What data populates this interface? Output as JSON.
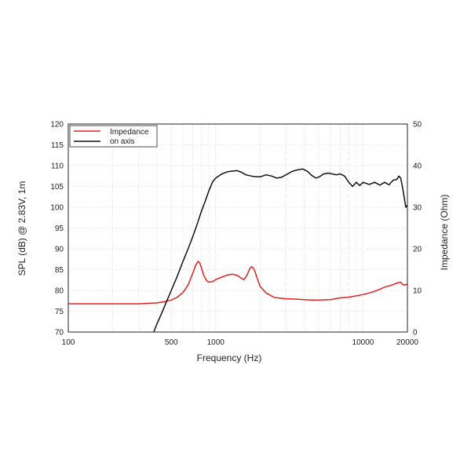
{
  "chart_data": {
    "type": "line",
    "xlabel": "Frequency (Hz)",
    "ylabel": "SPL (dB) @ 2.83V, 1m",
    "y2label": "Impedance (Ohm)",
    "xscale": "log",
    "xlim": [
      100,
      20000
    ],
    "ylim": [
      70,
      120
    ],
    "y2lim": [
      0,
      50
    ],
    "x_ticks": [
      "100",
      "500",
      "1000",
      "10000",
      "20000"
    ],
    "y_ticks": [
      "70",
      "75",
      "80",
      "85",
      "90",
      "95",
      "100",
      "105",
      "110",
      "115",
      "120"
    ],
    "y2_ticks": [
      "0",
      "10",
      "20",
      "30",
      "40",
      "50"
    ],
    "grid": true,
    "legend_position": "top-left",
    "series": [
      {
        "name": "Impedance",
        "axis": "right",
        "color": "#e02020",
        "x": [
          100,
          200,
          300,
          400,
          450,
          500,
          550,
          600,
          650,
          700,
          730,
          760,
          780,
          800,
          830,
          870,
          900,
          950,
          1000,
          1100,
          1200,
          1300,
          1400,
          1500,
          1550,
          1600,
          1650,
          1700,
          1750,
          1800,
          1850,
          1900,
          2000,
          2200,
          2500,
          3000,
          3500,
          4000,
          4500,
          5000,
          6000,
          7000,
          8000,
          9000,
          10000,
          11000,
          12000,
          13000,
          14000,
          15000,
          16000,
          17000,
          18000,
          18500,
          19000,
          20000
        ],
        "y": [
          6.8,
          6.8,
          6.8,
          7.0,
          7.3,
          7.7,
          8.4,
          9.5,
          11.3,
          14.2,
          16.0,
          17.0,
          16.6,
          15.5,
          13.6,
          12.3,
          12.0,
          12.1,
          12.6,
          13.2,
          13.7,
          13.9,
          13.6,
          12.9,
          12.6,
          13.2,
          14.1,
          15.2,
          15.7,
          15.4,
          14.5,
          13.2,
          11.0,
          9.4,
          8.3,
          8.0,
          7.9,
          7.8,
          7.7,
          7.7,
          7.8,
          8.2,
          8.4,
          8.7,
          9.0,
          9.4,
          9.8,
          10.3,
          10.8,
          11.1,
          11.4,
          11.8,
          12.0,
          11.5,
          11.3,
          11.5
        ]
      },
      {
        "name": "on axis",
        "axis": "left",
        "color": "#111111",
        "x": [
          380,
          400,
          430,
          460,
          500,
          550,
          600,
          650,
          700,
          750,
          800,
          850,
          900,
          950,
          1000,
          1100,
          1200,
          1300,
          1400,
          1500,
          1600,
          1800,
          2000,
          2200,
          2400,
          2600,
          2800,
          3000,
          3300,
          3600,
          3900,
          4200,
          4500,
          4800,
          5100,
          5400,
          5800,
          6200,
          6600,
          7000,
          7500,
          8000,
          8500,
          9000,
          9500,
          10000,
          11000,
          12000,
          13000,
          14000,
          15000,
          16000,
          17000,
          17500,
          18000,
          18500,
          19000,
          19500,
          20000
        ],
        "y": [
          70.0,
          72.0,
          74.5,
          77.0,
          80.0,
          83.5,
          87.0,
          90.0,
          93.0,
          96.0,
          99.0,
          101.5,
          104.0,
          106.0,
          107.0,
          108.0,
          108.5,
          108.7,
          108.8,
          108.4,
          107.8,
          107.4,
          107.3,
          107.8,
          107.5,
          107.0,
          107.2,
          107.8,
          108.6,
          109.0,
          109.2,
          108.6,
          107.6,
          107.0,
          107.4,
          108.0,
          108.2,
          108.0,
          107.8,
          108.0,
          107.5,
          106.0,
          105.0,
          106.0,
          105.2,
          106.0,
          105.5,
          106.0,
          105.3,
          106.0,
          105.4,
          106.5,
          106.7,
          107.5,
          107.0,
          105.0,
          102.5,
          100.0,
          100.5
        ]
      }
    ]
  }
}
